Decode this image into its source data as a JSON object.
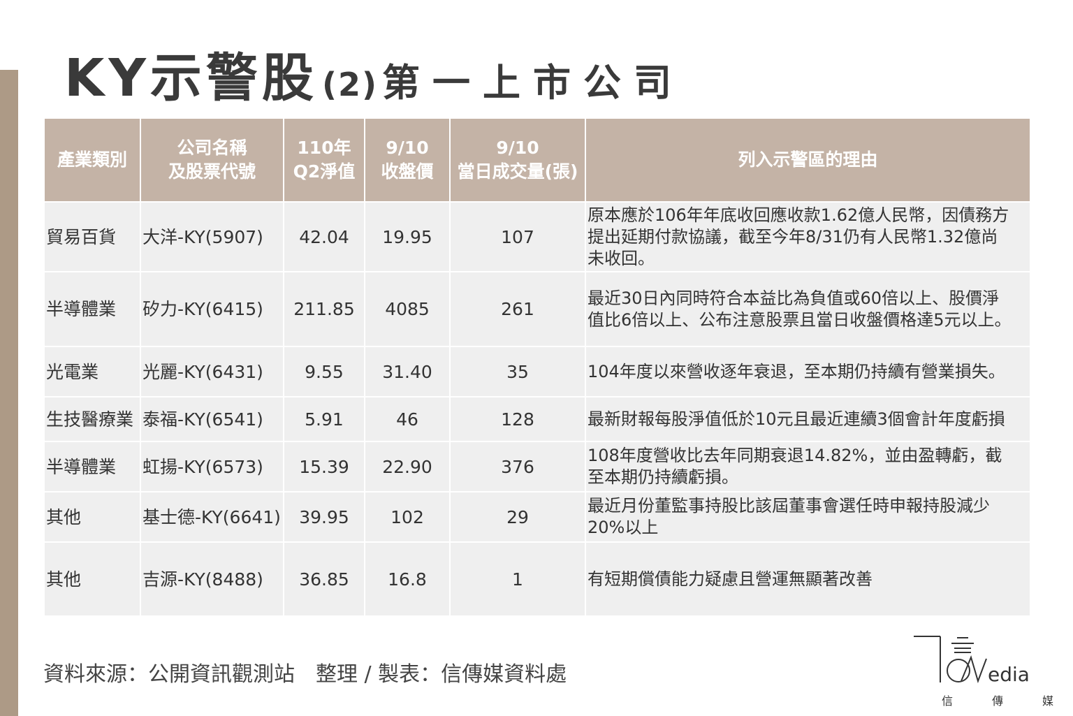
{
  "title": {
    "main": "KY示警股",
    "num": "(2)",
    "sub": "第一上市公司"
  },
  "table": {
    "headers": {
      "industry": "產業類別",
      "company_l1": "公司名稱",
      "company_l2": "及股票代號",
      "nav_l1": "110年",
      "nav_l2": "Q2淨值",
      "close_l1": "9/10",
      "close_l2": "收盤價",
      "volume_l1": "9/10",
      "volume_l2": "當日成交量(張)",
      "reason": "列入示警區的理由"
    },
    "rows": [
      {
        "industry": "貿易百貨",
        "company": "大洋-KY(5907)",
        "nav": "42.04",
        "close": "19.95",
        "volume": "107",
        "reason": [
          "原本應於106年年底收回應收款1.62億人民幣，因債務方",
          "提出延期付款協議，截至今年8/31仍有人民幣1.32億尚",
          "未收回。"
        ]
      },
      {
        "industry": "半導體業",
        "company": "矽力-KY(6415)",
        "nav": "211.85",
        "close": "4085",
        "volume": "261",
        "reason": [
          "最近30日內同時符合本益比為負值或60倍以上、股價淨",
          "值比6倍以上、公布注意股票且當日收盤價格達5元以上。"
        ]
      },
      {
        "industry": "光電業",
        "company": "光麗-KY(6431)",
        "nav": "9.55",
        "close": "31.40",
        "volume": "35",
        "reason": [
          "104年度以來營收逐年衰退，至本期仍持續有營業損失。"
        ]
      },
      {
        "industry": "生技醫療業",
        "company": "泰福-KY(6541)",
        "nav": "5.91",
        "close": "46",
        "volume": "128",
        "reason": [
          "最新財報每股淨值低於10元且最近連續3個會計年度虧損"
        ]
      },
      {
        "industry": "半導體業",
        "company": "虹揚-KY(6573)",
        "nav": "15.39",
        "close": "22.90",
        "volume": "376",
        "reason": [
          "108年度營收比去年同期衰退14.82%，並由盈轉虧，截",
          "至本期仍持續虧損。"
        ]
      },
      {
        "industry": "其他",
        "company": "基士德-KY(6641)",
        "nav": "39.95",
        "close": "102",
        "volume": "29",
        "reason": [
          "最近月份董監事持股比該屆董事會選任時申報持股減少",
          "20%以上"
        ]
      },
      {
        "industry": "其他",
        "company": "吉源-KY(8488)",
        "nav": "36.85",
        "close": "16.8",
        "volume": "1",
        "reason": [
          "有短期償債能力疑慮且營運無顯著改善"
        ]
      }
    ]
  },
  "footer": "資料來源：公開資訊觀測站　整理 / 製表：信傳媒資料處",
  "logo": {
    "text": "edia",
    "cn": [
      "信",
      "傳",
      "媒"
    ]
  },
  "colors": {
    "header_bg": "#c4b3a6",
    "cell_bg": "#efefef",
    "side_bar": "#ad9a86"
  }
}
